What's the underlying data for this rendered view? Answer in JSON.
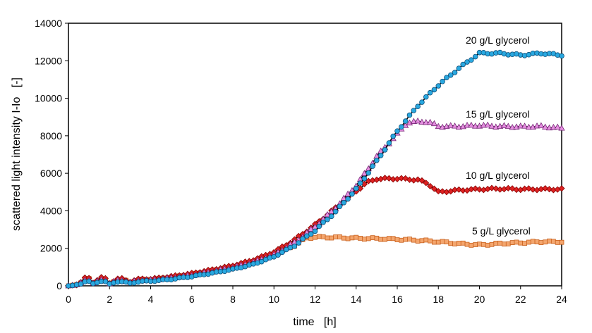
{
  "chart_data": {
    "type": "line",
    "title": "",
    "xlabel": "time   [h]",
    "ylabel": "scattered light intensity I-Io   [-]",
    "xlim": [
      0,
      24
    ],
    "ylim": [
      0,
      14000
    ],
    "x_ticks": [
      0,
      2,
      4,
      6,
      8,
      10,
      12,
      14,
      16,
      18,
      20,
      22,
      24
    ],
    "y_ticks": [
      0,
      2000,
      4000,
      6000,
      8000,
      10000,
      12000,
      14000
    ],
    "grid": false,
    "legend": "inline labels",
    "series": [
      {
        "name": "5 g/L glycerol",
        "marker": "square",
        "color": "#f4a66e",
        "edge": "#c9601c",
        "points": [
          [
            0,
            0
          ],
          [
            0.5,
            80
          ],
          [
            0.9,
            480
          ],
          [
            1.2,
            150
          ],
          [
            1.7,
            420
          ],
          [
            2.0,
            130
          ],
          [
            2.5,
            380
          ],
          [
            3.0,
            200
          ],
          [
            3.5,
            340
          ],
          [
            4.0,
            320
          ],
          [
            5.0,
            450
          ],
          [
            6.0,
            600
          ],
          [
            7.0,
            800
          ],
          [
            8.0,
            1000
          ],
          [
            9.0,
            1280
          ],
          [
            10.0,
            1650
          ],
          [
            11.0,
            2150
          ],
          [
            11.6,
            2550
          ],
          [
            12.0,
            2600
          ],
          [
            13.0,
            2580
          ],
          [
            14.0,
            2540
          ],
          [
            15.0,
            2520
          ],
          [
            16.0,
            2480
          ],
          [
            17.0,
            2430
          ],
          [
            18.0,
            2350
          ],
          [
            19.0,
            2250
          ],
          [
            20.0,
            2180
          ],
          [
            21.0,
            2250
          ],
          [
            22.0,
            2300
          ],
          [
            23.0,
            2350
          ],
          [
            24.0,
            2350
          ]
        ]
      },
      {
        "name": "10 g/L glycerol",
        "marker": "diamond",
        "color": "#dd2222",
        "edge": "#8a0000",
        "points": [
          [
            0,
            0
          ],
          [
            0.5,
            80
          ],
          [
            0.9,
            520
          ],
          [
            1.2,
            180
          ],
          [
            1.7,
            500
          ],
          [
            2.0,
            150
          ],
          [
            2.5,
            420
          ],
          [
            3.0,
            220
          ],
          [
            3.5,
            380
          ],
          [
            4.0,
            360
          ],
          [
            5.0,
            500
          ],
          [
            6.0,
            660
          ],
          [
            7.0,
            860
          ],
          [
            8.0,
            1080
          ],
          [
            9.0,
            1380
          ],
          [
            10.0,
            1800
          ],
          [
            11.0,
            2450
          ],
          [
            12.0,
            3250
          ],
          [
            13.0,
            4150
          ],
          [
            14.0,
            5050
          ],
          [
            14.5,
            5500
          ],
          [
            15.0,
            5700
          ],
          [
            16.0,
            5720
          ],
          [
            17.0,
            5650
          ],
          [
            17.5,
            5450
          ],
          [
            18.0,
            5000
          ],
          [
            19.0,
            5100
          ],
          [
            20.0,
            5150
          ],
          [
            21.0,
            5180
          ],
          [
            22.0,
            5150
          ],
          [
            23.0,
            5150
          ],
          [
            24.0,
            5150
          ]
        ]
      },
      {
        "name": "15 g/L glycerol",
        "marker": "triangle",
        "color": "#e58fe0",
        "edge": "#7a2a7a",
        "points": [
          [
            0,
            0
          ],
          [
            0.5,
            60
          ],
          [
            0.9,
            380
          ],
          [
            1.2,
            140
          ],
          [
            1.7,
            360
          ],
          [
            2.0,
            120
          ],
          [
            2.5,
            330
          ],
          [
            3.0,
            180
          ],
          [
            3.5,
            300
          ],
          [
            4.0,
            300
          ],
          [
            5.0,
            420
          ],
          [
            6.0,
            560
          ],
          [
            7.0,
            760
          ],
          [
            8.0,
            970
          ],
          [
            9.0,
            1250
          ],
          [
            10.0,
            1650
          ],
          [
            11.0,
            2300
          ],
          [
            12.0,
            3150
          ],
          [
            13.0,
            4150
          ],
          [
            14.0,
            5350
          ],
          [
            14.5,
            6100
          ],
          [
            15.0,
            6900
          ],
          [
            16.0,
            8100
          ],
          [
            16.5,
            8700
          ],
          [
            17.0,
            8750
          ],
          [
            17.5,
            8750
          ],
          [
            18.0,
            8500
          ],
          [
            19.0,
            8500
          ],
          [
            20.0,
            8550
          ],
          [
            21.0,
            8500
          ],
          [
            22.0,
            8480
          ],
          [
            23.0,
            8500
          ],
          [
            24.0,
            8400
          ]
        ]
      },
      {
        "name": "20 g/L glycerol",
        "marker": "circle",
        "color": "#29a8e0",
        "edge": "#0d4f7a",
        "points": [
          [
            0,
            0
          ],
          [
            0.5,
            50
          ],
          [
            0.9,
            300
          ],
          [
            1.2,
            100
          ],
          [
            1.7,
            300
          ],
          [
            2.0,
            80
          ],
          [
            2.5,
            260
          ],
          [
            3.0,
            130
          ],
          [
            3.5,
            240
          ],
          [
            4.0,
            250
          ],
          [
            5.0,
            350
          ],
          [
            6.0,
            500
          ],
          [
            7.0,
            680
          ],
          [
            8.0,
            880
          ],
          [
            9.0,
            1150
          ],
          [
            10.0,
            1550
          ],
          [
            11.0,
            2150
          ],
          [
            12.0,
            2950
          ],
          [
            13.0,
            3950
          ],
          [
            14.0,
            5150
          ],
          [
            15.0,
            6650
          ],
          [
            16.0,
            8250
          ],
          [
            17.0,
            9600
          ],
          [
            18.0,
            10700
          ],
          [
            19.0,
            11600
          ],
          [
            19.5,
            12000
          ],
          [
            20.0,
            12400
          ],
          [
            21.0,
            12400
          ],
          [
            22.0,
            12300
          ],
          [
            23.0,
            12400
          ],
          [
            24.0,
            12300
          ]
        ]
      }
    ]
  }
}
